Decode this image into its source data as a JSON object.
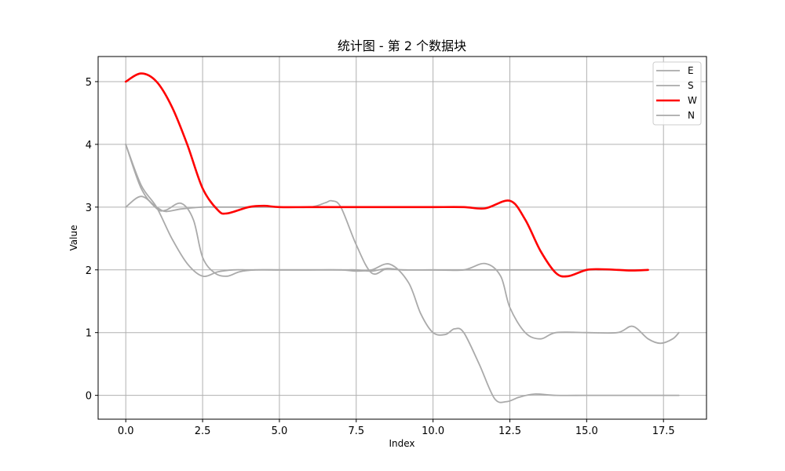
{
  "chart_data": {
    "type": "line",
    "title": "统计图 - 第 2 个数据块",
    "xlabel": "Index",
    "ylabel": "Value",
    "xlim": [
      -0.9,
      18.9
    ],
    "ylim": [
      -0.38,
      5.4
    ],
    "xticks": [
      0,
      2.5,
      5,
      7.5,
      10,
      12.5,
      15,
      17.5
    ],
    "xtick_labels": [
      "0.0",
      "2.5",
      "5.0",
      "7.5",
      "10.0",
      "12.5",
      "15.0",
      "17.5"
    ],
    "yticks": [
      0,
      1,
      2,
      3,
      4,
      5
    ],
    "ytick_labels": [
      "0",
      "1",
      "2",
      "3",
      "4",
      "5"
    ],
    "grid": true,
    "legend_position": "top-right",
    "series": [
      {
        "name": "E",
        "color": "#aaaaaa",
        "highlight": false,
        "points": [
          [
            0,
            3
          ],
          [
            0.5,
            3.17
          ],
          [
            1,
            3
          ],
          [
            1.3,
            2.93
          ],
          [
            1.8,
            2.97
          ],
          [
            2.5,
            3
          ],
          [
            3,
            3
          ],
          [
            4,
            3
          ],
          [
            5,
            3
          ],
          [
            6,
            3
          ],
          [
            6.5,
            3.07
          ],
          [
            6.7,
            3.1
          ],
          [
            7,
            3
          ],
          [
            7.5,
            2.4
          ],
          [
            8,
            1.95
          ],
          [
            8.5,
            2.02
          ],
          [
            9,
            2
          ],
          [
            10,
            2
          ],
          [
            11,
            2
          ],
          [
            12,
            2
          ],
          [
            13,
            2
          ],
          [
            14,
            2
          ],
          [
            15,
            2
          ],
          [
            16,
            2
          ],
          [
            17,
            2
          ]
        ]
      },
      {
        "name": "S",
        "color": "#aaaaaa",
        "highlight": false,
        "points": [
          [
            0,
            4
          ],
          [
            0.5,
            3.3
          ],
          [
            1,
            2.98
          ],
          [
            1.3,
            2.95
          ],
          [
            1.8,
            3.06
          ],
          [
            2.2,
            2.8
          ],
          [
            2.5,
            2.2
          ],
          [
            2.9,
            1.95
          ],
          [
            3.3,
            1.9
          ],
          [
            3.7,
            1.97
          ],
          [
            4.2,
            2
          ],
          [
            5,
            2
          ],
          [
            6,
            2
          ],
          [
            7,
            2
          ],
          [
            7.5,
            1.98
          ],
          [
            8,
            2
          ],
          [
            8.6,
            2.09
          ],
          [
            9.2,
            1.8
          ],
          [
            9.6,
            1.3
          ],
          [
            10,
            1
          ],
          [
            10.4,
            0.97
          ],
          [
            10.7,
            1.06
          ],
          [
            11,
            1
          ],
          [
            11.5,
            0.5
          ],
          [
            12,
            -0.05
          ],
          [
            12.4,
            -0.1
          ],
          [
            12.8,
            -0.03
          ],
          [
            13.3,
            0.02
          ],
          [
            14,
            0
          ],
          [
            15,
            0
          ],
          [
            16,
            0
          ],
          [
            17,
            0
          ],
          [
            18,
            0
          ]
        ]
      },
      {
        "name": "W",
        "color": "#ff0000",
        "highlight": true,
        "points": [
          [
            0,
            5
          ],
          [
            0.5,
            5.13
          ],
          [
            1,
            5
          ],
          [
            1.5,
            4.6
          ],
          [
            2,
            4
          ],
          [
            2.5,
            3.3
          ],
          [
            3,
            2.95
          ],
          [
            3.3,
            2.9
          ],
          [
            4,
            3
          ],
          [
            4.5,
            3.02
          ],
          [
            5,
            3
          ],
          [
            6,
            3
          ],
          [
            7,
            3
          ],
          [
            8,
            3
          ],
          [
            9,
            3
          ],
          [
            10,
            3
          ],
          [
            11,
            3
          ],
          [
            11.7,
            2.98
          ],
          [
            12.5,
            3.1
          ],
          [
            13,
            2.8
          ],
          [
            13.5,
            2.3
          ],
          [
            14,
            1.95
          ],
          [
            14.4,
            1.9
          ],
          [
            15,
            2
          ],
          [
            15.5,
            2.01
          ],
          [
            16,
            2
          ],
          [
            16.5,
            1.99
          ],
          [
            17,
            2
          ]
        ]
      },
      {
        "name": "N",
        "color": "#aaaaaa",
        "highlight": false,
        "points": [
          [
            0,
            4
          ],
          [
            0.5,
            3.35
          ],
          [
            1,
            3
          ],
          [
            1.5,
            2.5
          ],
          [
            2,
            2.1
          ],
          [
            2.5,
            1.9
          ],
          [
            3,
            1.97
          ],
          [
            3.5,
            2
          ],
          [
            4,
            2
          ],
          [
            5,
            2
          ],
          [
            6,
            2
          ],
          [
            7,
            2
          ],
          [
            7.5,
            2
          ],
          [
            8,
            1.98
          ],
          [
            8.5,
            2.02
          ],
          [
            9,
            2
          ],
          [
            10,
            2
          ],
          [
            11,
            2
          ],
          [
            11.7,
            2.1
          ],
          [
            12.2,
            1.9
          ],
          [
            12.5,
            1.4
          ],
          [
            13,
            1
          ],
          [
            13.5,
            0.9
          ],
          [
            14,
            1
          ],
          [
            15,
            1
          ],
          [
            16,
            1
          ],
          [
            16.5,
            1.1
          ],
          [
            17,
            0.9
          ],
          [
            17.4,
            0.83
          ],
          [
            17.8,
            0.9
          ],
          [
            18,
            1
          ]
        ]
      }
    ]
  }
}
